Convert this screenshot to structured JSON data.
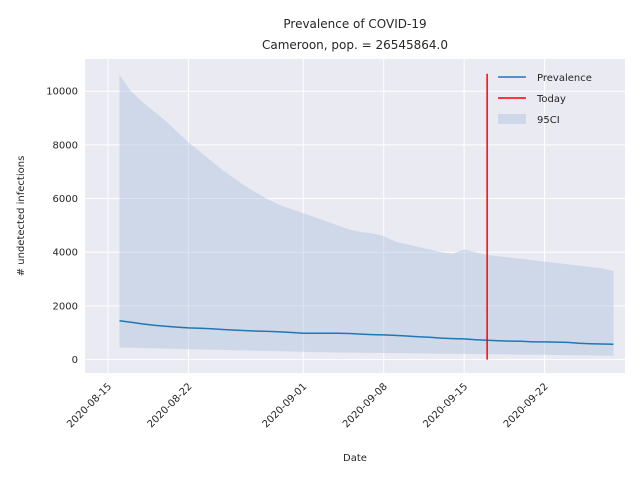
{
  "chart_data": {
    "type": "line",
    "title": "Prevalence of COVID-19",
    "subtitle": "Cameroon, pop. = 26545864.0",
    "xlabel": "Date",
    "ylabel": "# undetected infections",
    "xlim": [
      "2020-08-13",
      "2020-09-29"
    ],
    "ylim": [
      -500,
      11200
    ],
    "grid": true,
    "legend_position": "top-right",
    "x_ticks": [
      "2020-08-15",
      "2020-08-22",
      "2020-09-01",
      "2020-09-08",
      "2020-09-15",
      "2020-09-22"
    ],
    "y_ticks": [
      0,
      2000,
      4000,
      6000,
      8000,
      10000
    ],
    "colors": {
      "prevalence": "#1f77b4",
      "today": "#ff0000",
      "ci": "#b0c4de"
    },
    "series": [
      {
        "name": "Prevalence",
        "x": [
          "2020-08-16",
          "2020-08-17",
          "2020-08-18",
          "2020-08-19",
          "2020-08-20",
          "2020-08-21",
          "2020-08-22",
          "2020-08-23",
          "2020-08-24",
          "2020-08-25",
          "2020-08-26",
          "2020-08-27",
          "2020-08-28",
          "2020-08-29",
          "2020-08-30",
          "2020-08-31",
          "2020-09-01",
          "2020-09-02",
          "2020-09-03",
          "2020-09-04",
          "2020-09-05",
          "2020-09-06",
          "2020-09-07",
          "2020-09-08",
          "2020-09-09",
          "2020-09-10",
          "2020-09-11",
          "2020-09-12",
          "2020-09-13",
          "2020-09-14",
          "2020-09-15",
          "2020-09-16",
          "2020-09-17",
          "2020-09-18",
          "2020-09-19",
          "2020-09-20",
          "2020-09-21",
          "2020-09-22",
          "2020-09-23",
          "2020-09-24",
          "2020-09-25",
          "2020-09-26",
          "2020-09-27",
          "2020-09-28"
        ],
        "y": [
          1450,
          1390,
          1330,
          1280,
          1240,
          1210,
          1180,
          1170,
          1150,
          1120,
          1100,
          1080,
          1060,
          1050,
          1030,
          1010,
          980,
          980,
          980,
          980,
          970,
          950,
          930,
          920,
          900,
          880,
          850,
          830,
          800,
          780,
          770,
          740,
          720,
          700,
          690,
          680,
          660,
          660,
          650,
          640,
          610,
          590,
          580,
          570
        ]
      },
      {
        "name": "95CI",
        "x": [
          "2020-08-16",
          "2020-08-17",
          "2020-08-18",
          "2020-08-19",
          "2020-08-20",
          "2020-08-21",
          "2020-08-22",
          "2020-08-23",
          "2020-08-24",
          "2020-08-25",
          "2020-08-26",
          "2020-08-27",
          "2020-08-28",
          "2020-08-29",
          "2020-08-30",
          "2020-08-31",
          "2020-09-01",
          "2020-09-02",
          "2020-09-03",
          "2020-09-04",
          "2020-09-05",
          "2020-09-06",
          "2020-09-07",
          "2020-09-08",
          "2020-09-09",
          "2020-09-10",
          "2020-09-11",
          "2020-09-12",
          "2020-09-13",
          "2020-09-14",
          "2020-09-15",
          "2020-09-16",
          "2020-09-17",
          "2020-09-18",
          "2020-09-19",
          "2020-09-20",
          "2020-09-21",
          "2020-09-22",
          "2020-09-23",
          "2020-09-24",
          "2020-09-25",
          "2020-09-26",
          "2020-09-27",
          "2020-09-28"
        ],
        "upper": [
          10600,
          10000,
          9600,
          9250,
          8900,
          8500,
          8100,
          7750,
          7400,
          7050,
          6750,
          6450,
          6200,
          5950,
          5750,
          5600,
          5450,
          5300,
          5150,
          5000,
          4850,
          4750,
          4700,
          4600,
          4400,
          4300,
          4200,
          4100,
          4000,
          3950,
          4100,
          4000,
          3900,
          3850,
          3800,
          3750,
          3700,
          3650,
          3600,
          3550,
          3500,
          3450,
          3400,
          3300
        ],
        "lower": [
          450,
          440,
          430,
          420,
          410,
          400,
          390,
          380,
          370,
          360,
          350,
          340,
          330,
          320,
          310,
          300,
          290,
          280,
          270,
          265,
          260,
          255,
          250,
          245,
          240,
          235,
          230,
          225,
          220,
          215,
          210,
          205,
          200,
          195,
          190,
          185,
          180,
          175,
          170,
          165,
          160,
          155,
          150,
          145
        ]
      }
    ],
    "today": "2020-09-17",
    "legend": [
      "Prevalence",
      "Today",
      "95CI"
    ]
  }
}
